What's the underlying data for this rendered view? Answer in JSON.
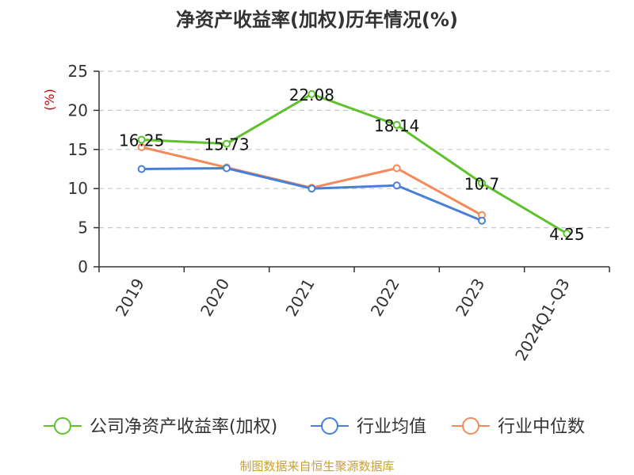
{
  "chart_data": {
    "type": "line",
    "title": "净资产收益率(加权)历年情况(%)",
    "ylabel": "(%)",
    "xlabel": "",
    "ylim": [
      0,
      25
    ],
    "yticks": [
      0,
      5,
      10,
      15,
      20,
      25
    ],
    "grid": true,
    "legend_position": "bottom",
    "categories": [
      "2019",
      "2020",
      "2021",
      "2022",
      "2023",
      "2024Q1-Q3"
    ],
    "series": [
      {
        "name": "公司净资产收益率(加权)",
        "color": "#5ec22c",
        "values": [
          16.25,
          15.73,
          22.08,
          18.14,
          10.7,
          4.25
        ],
        "labels": [
          "16.25",
          "15.73",
          "22.08",
          "18.14",
          "10.7",
          "4.25"
        ],
        "show_labels": true
      },
      {
        "name": "行业均值",
        "color": "#4a7fd9",
        "values": [
          12.5,
          12.6,
          10.0,
          10.4,
          5.9,
          null
        ],
        "show_labels": false
      },
      {
        "name": "行业中位数",
        "color": "#f5895a",
        "values": [
          15.3,
          12.7,
          10.1,
          12.6,
          6.6,
          null
        ],
        "show_labels": false
      }
    ],
    "source": "制图数据来自恒生聚源数据库",
    "source_color": "#c8a03c",
    "ylabel_color": "#cc0000"
  }
}
